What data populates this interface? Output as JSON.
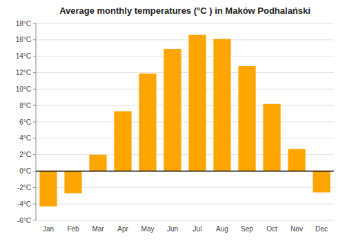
{
  "chart_data": {
    "type": "bar",
    "title": "Average monthly temperatures (°C ) in Maków Podhalański",
    "categories": [
      "Jan",
      "Feb",
      "Mar",
      "Apr",
      "May",
      "Jun",
      "Jul",
      "Aug",
      "Sep",
      "Oct",
      "Nov",
      "Dec"
    ],
    "values": [
      -4.3,
      -2.7,
      2.0,
      7.3,
      11.9,
      14.9,
      16.6,
      16.1,
      12.8,
      8.2,
      2.7,
      -2.6
    ],
    "color": "#FFA500",
    "ylim": [
      -6,
      18
    ],
    "yticks": [
      {
        "value": -6,
        "label": "-6°C"
      },
      {
        "value": -4,
        "label": "-4°C"
      },
      {
        "value": -2,
        "label": "-2°C"
      },
      {
        "value": 0,
        "label": "0°C"
      },
      {
        "value": 2,
        "label": "2°C"
      },
      {
        "value": 4,
        "label": "4°C"
      },
      {
        "value": 6,
        "label": "6°C"
      },
      {
        "value": 8,
        "label": "8°C"
      },
      {
        "value": 10,
        "label": "10°C"
      },
      {
        "value": 12,
        "label": "12°C"
      },
      {
        "value": 14,
        "label": "14°C"
      },
      {
        "value": 16,
        "label": "16°C"
      },
      {
        "value": 18,
        "label": "18°C"
      }
    ],
    "grid": true
  }
}
